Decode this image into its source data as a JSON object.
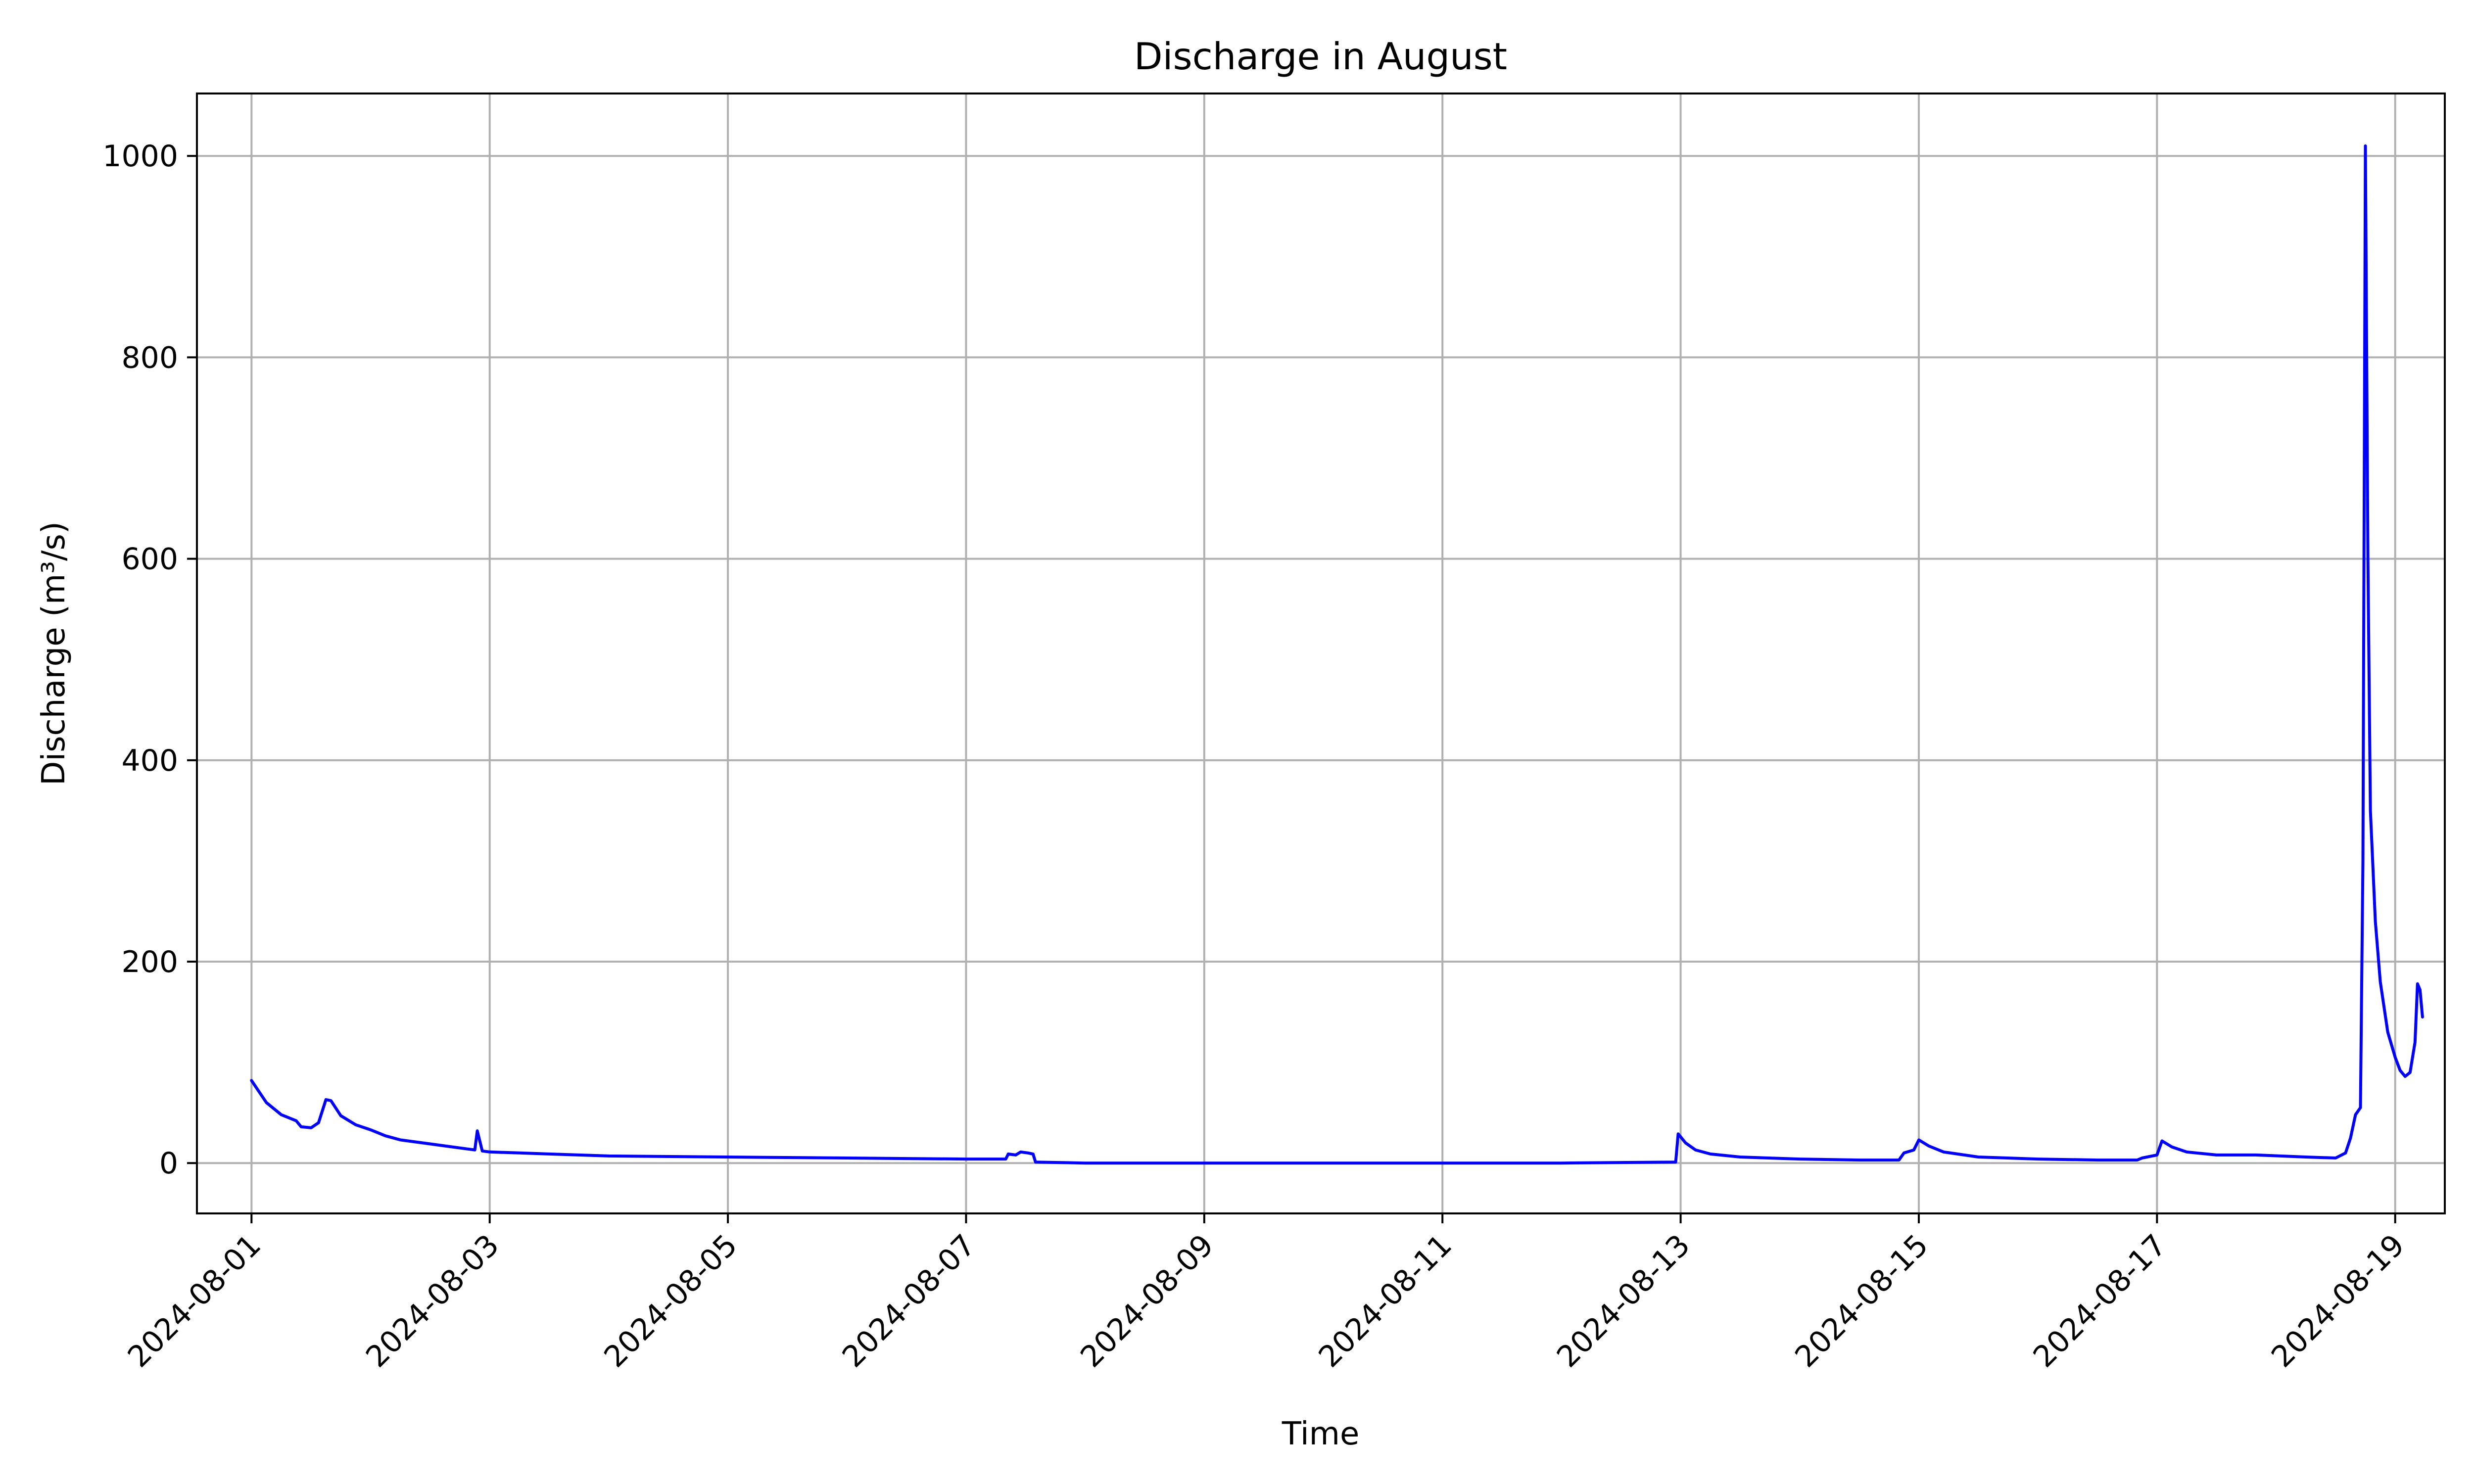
{
  "chart_data": {
    "type": "line",
    "title": "Discharge in August",
    "xlabel": "Time",
    "ylabel": "Discharge (m³/s)",
    "x_scale": "time",
    "xlim": [
      "2024-07-31T13:00",
      "2024-08-19T10:00"
    ],
    "ylim": [
      -50,
      1062
    ],
    "x_ticks": [
      "2024-08-01",
      "2024-08-03",
      "2024-08-05",
      "2024-08-07",
      "2024-08-09",
      "2024-08-11",
      "2024-08-13",
      "2024-08-15",
      "2024-08-17",
      "2024-08-19"
    ],
    "y_ticks": [
      0,
      200,
      400,
      600,
      800,
      1000
    ],
    "grid": true,
    "legend": "none",
    "colors": {
      "series": "#0000ff",
      "grid": "#b0b0b0",
      "axes": "#000000"
    },
    "series": [
      {
        "color": "#0000ff",
        "points": [
          [
            "2024-08-01T00:00",
            82
          ],
          [
            "2024-08-01T03:00",
            60
          ],
          [
            "2024-08-01T06:00",
            48
          ],
          [
            "2024-08-01T09:00",
            42
          ],
          [
            "2024-08-01T10:00",
            36
          ],
          [
            "2024-08-01T12:00",
            35
          ],
          [
            "2024-08-01T13:30",
            40
          ],
          [
            "2024-08-01T15:00",
            63
          ],
          [
            "2024-08-01T16:00",
            62
          ],
          [
            "2024-08-01T18:00",
            47
          ],
          [
            "2024-08-01T21:00",
            38
          ],
          [
            "2024-08-02T00:00",
            33
          ],
          [
            "2024-08-02T03:00",
            27
          ],
          [
            "2024-08-02T06:00",
            23
          ],
          [
            "2024-08-02T12:00",
            19
          ],
          [
            "2024-08-02T18:00",
            15
          ],
          [
            "2024-08-02T21:00",
            13
          ],
          [
            "2024-08-02T21:30",
            32
          ],
          [
            "2024-08-02T22:30",
            12
          ],
          [
            "2024-08-03T00:00",
            11
          ],
          [
            "2024-08-03T06:00",
            10
          ],
          [
            "2024-08-03T12:00",
            9
          ],
          [
            "2024-08-03T18:00",
            8
          ],
          [
            "2024-08-04T00:00",
            7
          ],
          [
            "2024-08-05T00:00",
            6
          ],
          [
            "2024-08-06T00:00",
            5
          ],
          [
            "2024-08-07T00:00",
            4
          ],
          [
            "2024-08-07T08:00",
            4
          ],
          [
            "2024-08-07T08:30",
            9
          ],
          [
            "2024-08-07T10:00",
            8
          ],
          [
            "2024-08-07T11:00",
            11
          ],
          [
            "2024-08-07T12:30",
            10
          ],
          [
            "2024-08-07T13:30",
            9
          ],
          [
            "2024-08-07T14:00",
            1
          ],
          [
            "2024-08-08T00:00",
            0
          ],
          [
            "2024-08-10T00:00",
            0
          ],
          [
            "2024-08-12T00:00",
            0
          ],
          [
            "2024-08-12T23:00",
            1
          ],
          [
            "2024-08-12T23:30",
            29
          ],
          [
            "2024-08-13T01:00",
            20
          ],
          [
            "2024-08-13T03:00",
            13
          ],
          [
            "2024-08-13T06:00",
            9
          ],
          [
            "2024-08-13T12:00",
            6
          ],
          [
            "2024-08-14T00:00",
            4
          ],
          [
            "2024-08-14T12:00",
            3
          ],
          [
            "2024-08-14T20:00",
            3
          ],
          [
            "2024-08-14T21:00",
            10
          ],
          [
            "2024-08-14T23:00",
            13
          ],
          [
            "2024-08-15T00:00",
            23
          ],
          [
            "2024-08-15T02:00",
            17
          ],
          [
            "2024-08-15T05:00",
            11
          ],
          [
            "2024-08-15T12:00",
            6
          ],
          [
            "2024-08-16T00:00",
            4
          ],
          [
            "2024-08-16T12:00",
            3
          ],
          [
            "2024-08-16T20:00",
            3
          ],
          [
            "2024-08-16T21:00",
            5
          ],
          [
            "2024-08-17T00:00",
            8
          ],
          [
            "2024-08-17T01:00",
            22
          ],
          [
            "2024-08-17T03:00",
            16
          ],
          [
            "2024-08-17T06:00",
            11
          ],
          [
            "2024-08-17T12:00",
            8
          ],
          [
            "2024-08-17T20:00",
            8
          ],
          [
            "2024-08-18T06:00",
            6
          ],
          [
            "2024-08-18T12:00",
            5
          ],
          [
            "2024-08-18T14:00",
            10
          ],
          [
            "2024-08-18T15:00",
            25
          ],
          [
            "2024-08-18T16:00",
            48
          ],
          [
            "2024-08-18T17:00",
            55
          ],
          [
            "2024-08-18T17:30",
            300
          ],
          [
            "2024-08-18T18:00",
            1010
          ],
          [
            "2024-08-18T18:30",
            600
          ],
          [
            "2024-08-18T19:00",
            350
          ],
          [
            "2024-08-18T20:00",
            240
          ],
          [
            "2024-08-18T21:00",
            180
          ],
          [
            "2024-08-18T22:30",
            130
          ],
          [
            "2024-08-19T00:00",
            105
          ],
          [
            "2024-08-19T01:00",
            92
          ],
          [
            "2024-08-19T02:00",
            86
          ],
          [
            "2024-08-19T03:00",
            90
          ],
          [
            "2024-08-19T04:00",
            120
          ],
          [
            "2024-08-19T04:30",
            178
          ],
          [
            "2024-08-19T05:00",
            172
          ],
          [
            "2024-08-19T05:30",
            145
          ]
        ]
      }
    ]
  }
}
